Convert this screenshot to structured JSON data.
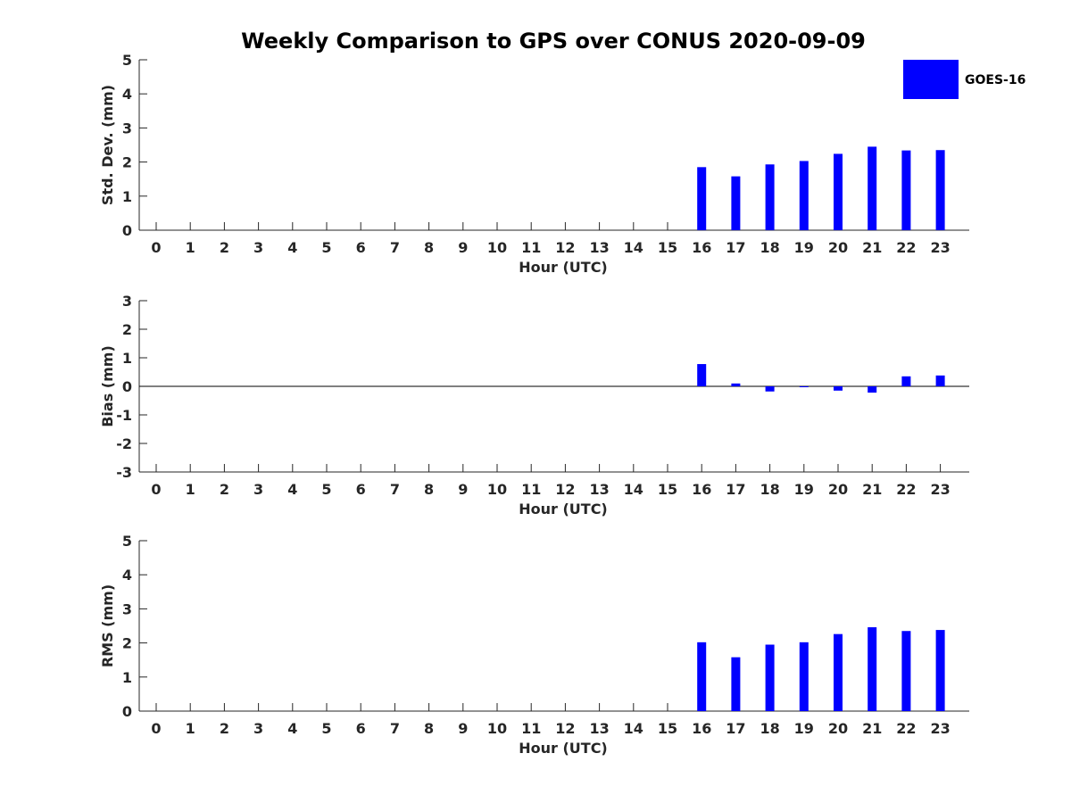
{
  "title": "Weekly Comparison to GPS over CONUS 2020-09-09",
  "legend": {
    "label": "GOES-16",
    "color": "#0000ff",
    "placement": "top-right"
  },
  "colors": {
    "bar": "#0000ff",
    "axis": "#262626",
    "zero_line": "#000000"
  },
  "chart_data": [
    {
      "type": "bar",
      "ylabel": "Std. Dev. (mm)",
      "xlabel": "Hour (UTC)",
      "ylim": [
        0,
        5
      ],
      "yticks": [
        0,
        1,
        2,
        3,
        4,
        5
      ],
      "categories": [
        "0",
        "1",
        "2",
        "3",
        "4",
        "5",
        "6",
        "7",
        "8",
        "9",
        "10",
        "11",
        "12",
        "13",
        "14",
        "15",
        "16",
        "17",
        "18",
        "19",
        "20",
        "21",
        "22",
        "23"
      ],
      "series": [
        {
          "name": "GOES-16",
          "values": [
            null,
            null,
            null,
            null,
            null,
            null,
            null,
            null,
            null,
            null,
            null,
            null,
            null,
            null,
            null,
            null,
            1.85,
            1.58,
            1.93,
            2.03,
            2.24,
            2.45,
            2.34,
            2.35
          ]
        }
      ],
      "zero_line": false,
      "grid": false
    },
    {
      "type": "bar",
      "ylabel": "Bias (mm)",
      "xlabel": "Hour (UTC)",
      "ylim": [
        -3,
        3
      ],
      "yticks": [
        -3,
        -2,
        -1,
        0,
        1,
        2,
        3
      ],
      "categories": [
        "0",
        "1",
        "2",
        "3",
        "4",
        "5",
        "6",
        "7",
        "8",
        "9",
        "10",
        "11",
        "12",
        "13",
        "14",
        "15",
        "16",
        "17",
        "18",
        "19",
        "20",
        "21",
        "22",
        "23"
      ],
      "series": [
        {
          "name": "GOES-16",
          "values": [
            null,
            null,
            null,
            null,
            null,
            null,
            null,
            null,
            null,
            null,
            null,
            null,
            null,
            null,
            null,
            null,
            0.78,
            0.1,
            -0.18,
            -0.02,
            -0.15,
            -0.22,
            0.35,
            0.38
          ]
        }
      ],
      "zero_line": true,
      "grid": false
    },
    {
      "type": "bar",
      "ylabel": "RMS (mm)",
      "xlabel": "Hour (UTC)",
      "ylim": [
        0,
        5
      ],
      "yticks": [
        0,
        1,
        2,
        3,
        4,
        5
      ],
      "categories": [
        "0",
        "1",
        "2",
        "3",
        "4",
        "5",
        "6",
        "7",
        "8",
        "9",
        "10",
        "11",
        "12",
        "13",
        "14",
        "15",
        "16",
        "17",
        "18",
        "19",
        "20",
        "21",
        "22",
        "23"
      ],
      "series": [
        {
          "name": "GOES-16",
          "values": [
            null,
            null,
            null,
            null,
            null,
            null,
            null,
            null,
            null,
            null,
            null,
            null,
            null,
            null,
            null,
            null,
            2.02,
            1.58,
            1.95,
            2.02,
            2.26,
            2.46,
            2.35,
            2.38
          ]
        }
      ],
      "zero_line": false,
      "grid": false
    }
  ]
}
